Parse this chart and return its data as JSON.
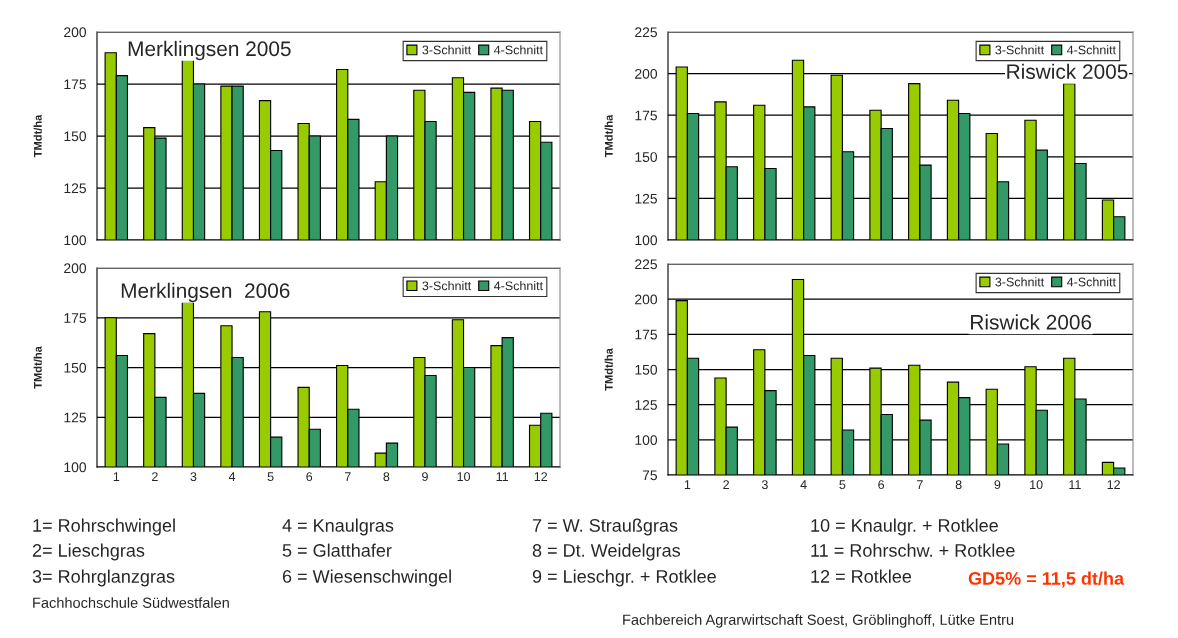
{
  "chart_data": [
    {
      "type": "bar",
      "title": "Merklingsen 2005",
      "ylabel": "TMdt/ha",
      "categories": [
        "1",
        "2",
        "3",
        "4",
        "5",
        "6",
        "7",
        "8",
        "9",
        "10",
        "11",
        "12"
      ],
      "tick_labels": "y",
      "ylim": [
        100,
        200
      ],
      "yticks": [
        100,
        125,
        150,
        175,
        200
      ],
      "grid": "y",
      "legend": "top right",
      "series": [
        {
          "name": "3-Schnitt",
          "color": "#99cc00",
          "values": [
            190,
            154,
            187,
            174,
            167,
            156,
            182,
            128,
            172,
            178,
            173,
            157
          ]
        },
        {
          "name": "4-Schnitt",
          "color": "#339966",
          "values": [
            179,
            149,
            175,
            174,
            143,
            150,
            158,
            150,
            157,
            171,
            172,
            147
          ]
        }
      ]
    },
    {
      "type": "bar",
      "title": "Riswick 2005",
      "ylabel": "TMdt/ha",
      "categories": [
        "1",
        "2",
        "3",
        "4",
        "5",
        "6",
        "7",
        "8",
        "9",
        "10",
        "11",
        "12"
      ],
      "tick_labels": "y",
      "ylim": [
        100,
        225
      ],
      "yticks": [
        100,
        125,
        150,
        175,
        200,
        225
      ],
      "grid": "y",
      "legend": "top right",
      "series": [
        {
          "name": "3-Schnitt",
          "color": "#99cc00",
          "values": [
            204,
            183,
            181,
            208,
            199,
            178,
            194,
            184,
            164,
            172,
            194,
            124
          ]
        },
        {
          "name": "4-Schnitt",
          "color": "#339966",
          "values": [
            176,
            144,
            143,
            180,
            153,
            167,
            145,
            176,
            135,
            154,
            146,
            114
          ]
        }
      ]
    },
    {
      "type": "bar",
      "title": "Merklingsen  2006",
      "ylabel": "TMdt/ha",
      "categories": [
        "1",
        "2",
        "3",
        "4",
        "5",
        "6",
        "7",
        "8",
        "9",
        "10",
        "11",
        "12"
      ],
      "ylim": [
        100,
        200
      ],
      "yticks": [
        100,
        125,
        150,
        175,
        200
      ],
      "grid": "y",
      "legend": "top right",
      "series": [
        {
          "name": "3-Schnitt",
          "color": "#99cc00",
          "values": [
            175,
            167,
            183,
            171,
            178,
            140,
            151,
            107,
            155,
            174,
            161,
            121
          ]
        },
        {
          "name": "4-Schnitt",
          "color": "#339966",
          "values": [
            156,
            135,
            137,
            155,
            115,
            119,
            129,
            112,
            146,
            150,
            165,
            127
          ]
        }
      ]
    },
    {
      "type": "bar",
      "title": "Riswick 2006",
      "ylabel": "TMdt/ha",
      "categories": [
        "1",
        "2",
        "3",
        "4",
        "5",
        "6",
        "7",
        "8",
        "9",
        "10",
        "11",
        "12"
      ],
      "ylim": [
        75,
        225
      ],
      "yticks": [
        75,
        100,
        125,
        150,
        175,
        200,
        225
      ],
      "grid": "y",
      "legend": "top right",
      "series": [
        {
          "name": "3-Schnitt",
          "color": "#99cc00",
          "values": [
            199,
            144,
            164,
            214,
            158,
            151,
            153,
            141,
            136,
            152,
            158,
            84
          ]
        },
        {
          "name": "4-Schnitt",
          "color": "#339966",
          "values": [
            158,
            109,
            135,
            160,
            107,
            118,
            114,
            130,
            97,
            121,
            129,
            80
          ]
        }
      ],
      "annotations": [
        "1= Rohrschwingel",
        "2= Lieschgras",
        "3= Rohrglanzgras",
        "4 = Knaulgras",
        "5 = Glatthafer",
        "6 = Wiesenschwingel",
        "7 = W. Straußgras",
        "8 = Dt. Weidelgras",
        "9 = Lieschgr. + Rotklee",
        "10 = Knaulgr. + Rotklee",
        "11 = Rohrschw. + Rotklee",
        "12 = Rotklee",
        "GD5% = 11,5 dt/ha",
        "Fachhochschule Südwestfalen",
        "Fachbereich Agrarwirtschaft Soest, Gröblinghoff, Lütke Entru"
      ]
    }
  ]
}
